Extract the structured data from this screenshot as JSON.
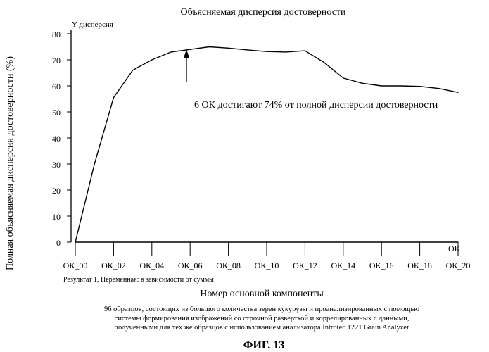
{
  "chart_data": {
    "type": "line",
    "title": "Объясняемая дисперсия достоверности",
    "ylabel": "Полная объясняемая дисперсия достоверности (%)",
    "y_axis_caption": "Y-дисперсия",
    "x_axis_end_label": "ОК",
    "xlabel": "Номер основной компоненты",
    "ylim": [
      0,
      80
    ],
    "yticks": [
      0,
      10,
      20,
      30,
      40,
      50,
      60,
      70,
      80
    ],
    "x_tick_labels": [
      "ОК_00",
      "ОК_02",
      "ОК_04",
      "ОК_06",
      "ОК_08",
      "ОК_10",
      "ОК_12",
      "ОК_14",
      "ОК_16",
      "ОК_18",
      "ОК_20"
    ],
    "x": [
      0,
      1,
      2,
      3,
      4,
      5,
      6,
      7,
      8,
      9,
      10,
      11,
      12,
      13,
      14,
      15,
      16,
      17,
      18,
      19,
      20
    ],
    "series": [
      {
        "values": [
          0,
          30,
          55.5,
          66,
          70,
          73,
          74,
          75,
          74.5,
          73.8,
          73.2,
          73,
          73.5,
          69,
          63,
          61,
          60,
          60,
          59.8,
          59,
          57.5
        ]
      },
      {
        "values": [
          0,
          0,
          0,
          0,
          0,
          0,
          0,
          0,
          0,
          0,
          0,
          0,
          0,
          0,
          0,
          0,
          0,
          0,
          0,
          0,
          0
        ]
      }
    ],
    "annotation": {
      "text": "6 ОК достигают 74% от полной дисперсии достоверности",
      "x": 6,
      "y": 74
    },
    "result_note": "Результат 1, Переменная: в зависимости от суммы",
    "caption": [
      "96 образцов, состоящих из большого количества зерен кукурузы и проанализированных с помощью",
      "системы формирования изображений со строчной разверткой и коррелированных с данными,",
      "полученными для тех же образцов с использованием анализатора Introtec 1221 Grain Analyzer"
    ],
    "figure_label": "ФИГ. 13",
    "grid": false
  }
}
